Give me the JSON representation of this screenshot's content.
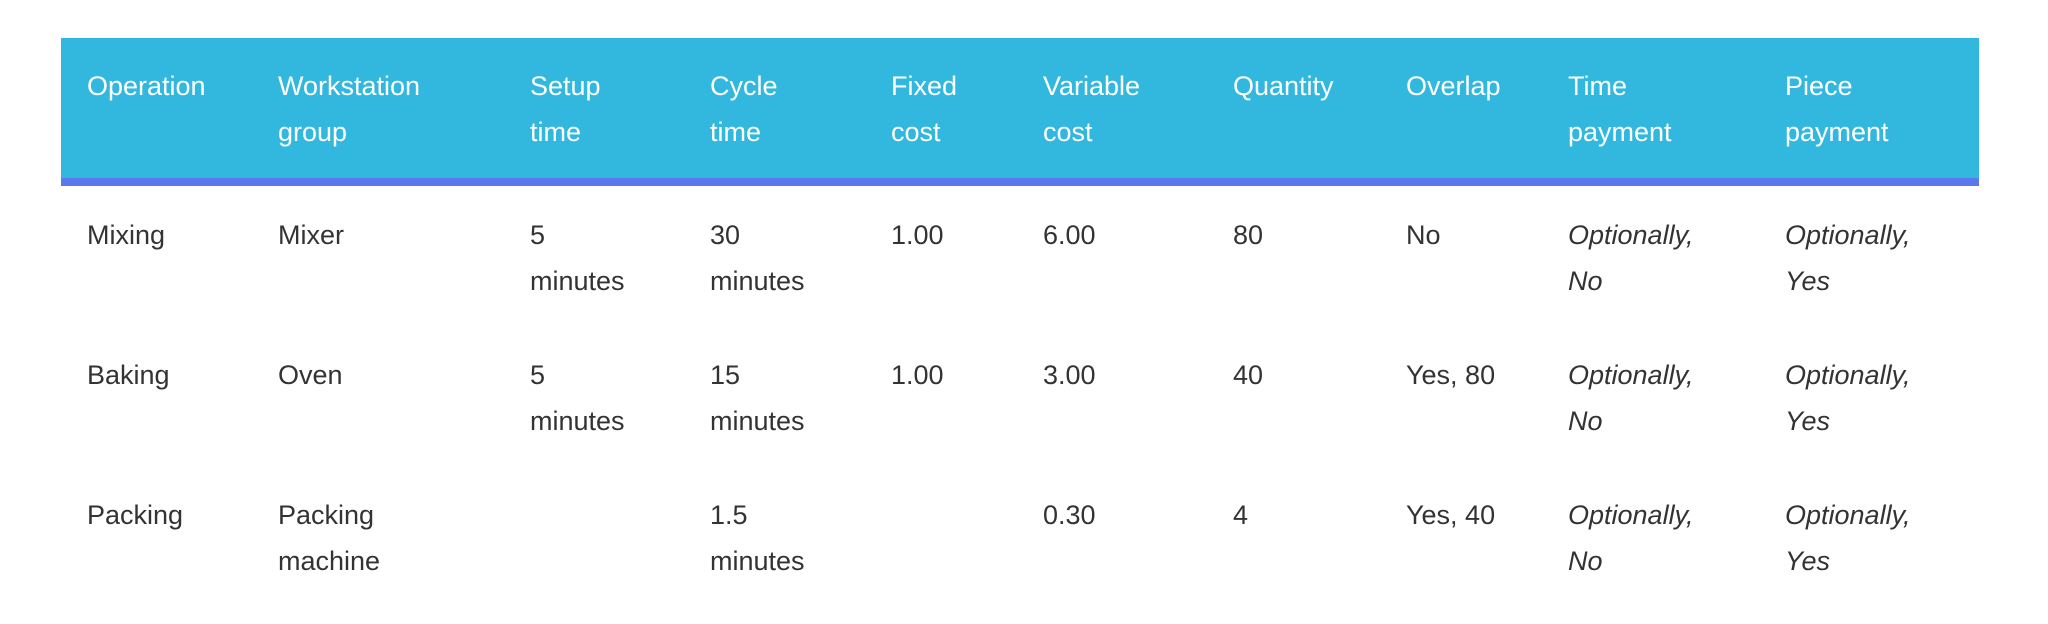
{
  "table": {
    "headers": [
      "Operation",
      "Workstation group",
      "Setup time",
      "Cycle time",
      "Fixed cost",
      "Variable cost",
      "Quantity",
      "Overlap",
      "Time payment",
      "Piece payment"
    ],
    "rows": [
      [
        "Mixing",
        "Mixer",
        "5 minutes",
        "30 minutes",
        "1.00",
        "6.00",
        "80",
        "No",
        "Optionally, No",
        "Optionally, Yes"
      ],
      [
        "Baking",
        "Oven",
        "5 minutes",
        "15 minutes",
        "1.00",
        "3.00",
        "40",
        "Yes, 80",
        "Optionally, No",
        "Optionally, Yes"
      ],
      [
        "Packing",
        "Packing machine",
        "",
        "1.5 minutes",
        "",
        "0.30",
        "4",
        "Yes, 40",
        "Optionally, No",
        "Optionally, Yes"
      ]
    ]
  },
  "colors": {
    "header_bg": "#32b8de",
    "header_border": "#5b78ed",
    "header_text": "#ffffff",
    "body_text": "#333333"
  }
}
